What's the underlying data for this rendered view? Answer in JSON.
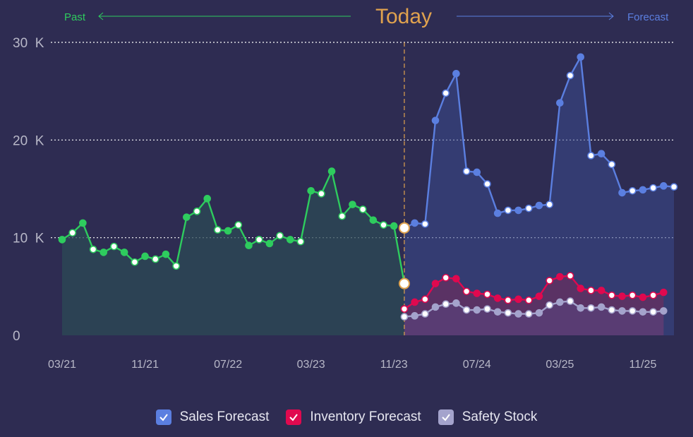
{
  "header": {
    "title": "Today",
    "past_label": "Past",
    "forecast_label": "Forecast"
  },
  "colors": {
    "background": "#2e2c52",
    "past": "#2ecc5e",
    "sales": "#5b7fe0",
    "inventory": "#e0094f",
    "safety": "#a4a3cc",
    "today": "#e0a24e",
    "title": "#e0a24e"
  },
  "chart_data": {
    "type": "line",
    "ylim": [
      0,
      30000
    ],
    "y_ticks": [
      {
        "value": 0,
        "label": "0"
      },
      {
        "value": 10000,
        "label": "10  K"
      },
      {
        "value": 20000,
        "label": "20  K"
      },
      {
        "value": 30000,
        "label": "30  K"
      }
    ],
    "x_ticks": [
      {
        "label": "03/21",
        "index": 0
      },
      {
        "label": "11/21",
        "index": 8
      },
      {
        "label": "07/22",
        "index": 16
      },
      {
        "label": "03/23",
        "index": 24
      },
      {
        "label": "11/23",
        "index": 32
      },
      {
        "label": "07/24",
        "index": 40
      },
      {
        "label": "03/25",
        "index": 48
      },
      {
        "label": "11/25",
        "index": 56
      }
    ],
    "x_range": [
      0,
      59
    ],
    "today_index": 33,
    "grid": "dotted horizontal",
    "legend_position": "bottom",
    "series": [
      {
        "key": "past",
        "start_index": 0,
        "color": "#2ecc5e",
        "values": [
          9800,
          10500,
          11500,
          8800,
          8500,
          9100,
          8500,
          7500,
          8100,
          7800,
          8300,
          7100,
          12100,
          12700,
          14000,
          10800,
          10700,
          11300,
          9200,
          9800,
          9400,
          10200,
          9800,
          9600,
          14800,
          14500,
          16800,
          12200,
          13400,
          12900,
          11800,
          11300,
          11200,
          5300
        ]
      },
      {
        "key": "sales",
        "name": "Sales Forecast",
        "start_index": 33,
        "color": "#5b7fe0",
        "values": [
          11000,
          11500,
          11400,
          22000,
          24800,
          26800,
          16800,
          16700,
          15500,
          12500,
          12800,
          12800,
          13000,
          13300,
          13400,
          23800,
          26600,
          28500,
          18400,
          18600,
          17500,
          14600,
          14800,
          14900,
          15100,
          15300,
          15200
        ]
      },
      {
        "key": "inventory",
        "name": "Inventory Forecast",
        "start_index": 33,
        "color": "#e0094f",
        "values": [
          2700,
          3400,
          3700,
          5300,
          5900,
          5800,
          4500,
          4300,
          4200,
          3800,
          3600,
          3700,
          3600,
          4000,
          5600,
          6000,
          6100,
          4800,
          4600,
          4600,
          4100,
          4000,
          4100,
          3900,
          4100,
          4400
        ]
      },
      {
        "key": "safety",
        "name": "Safety Stock",
        "start_index": 33,
        "color": "#a4a3cc",
        "values": [
          1900,
          2000,
          2200,
          2900,
          3200,
          3300,
          2600,
          2600,
          2700,
          2400,
          2300,
          2200,
          2200,
          2300,
          3100,
          3400,
          3500,
          2800,
          2800,
          2900,
          2600,
          2500,
          2500,
          2400,
          2400,
          2500
        ]
      }
    ]
  },
  "legend": [
    {
      "label": "Sales Forecast",
      "color": "#5b7fe0"
    },
    {
      "label": "Inventory Forecast",
      "color": "#e0094f"
    },
    {
      "label": "Safety Stock",
      "color": "#a4a3cc"
    }
  ]
}
